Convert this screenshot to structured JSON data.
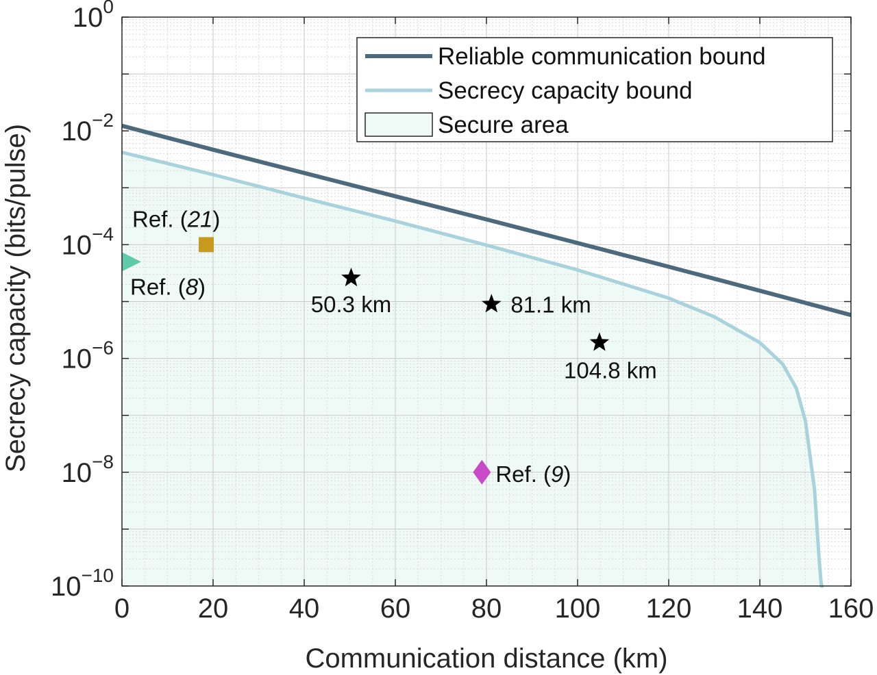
{
  "chart_data": {
    "type": "line",
    "xlabel": "Communication distance (km)",
    "ylabel": "Secrecy capacity (bits/pulse)",
    "xlim": [
      0,
      160
    ],
    "ylim": [
      1e-10,
      1
    ],
    "yscale": "log",
    "grid": true,
    "minor_grid": true,
    "legend_position": "top-right",
    "x_ticks": [
      0,
      20,
      40,
      60,
      80,
      100,
      120,
      140,
      160
    ],
    "y_ticks": [
      {
        "value": 1e-10,
        "base": "10",
        "exp": "−10"
      },
      {
        "value": 1e-08,
        "base": "10",
        "exp": "−8"
      },
      {
        "value": 1e-06,
        "base": "10",
        "exp": "−6"
      },
      {
        "value": 0.0001,
        "base": "10",
        "exp": "−4"
      },
      {
        "value": 0.01,
        "base": "10",
        "exp": "−2"
      },
      {
        "value": 1,
        "base": "10",
        "exp": "0"
      }
    ],
    "series": [
      {
        "name": "Reliable communication bound",
        "color": "#4d6a7d",
        "x": [
          0,
          20,
          40,
          60,
          80,
          100,
          120,
          140,
          160
        ],
        "y": [
          0.0123,
          0.00467,
          0.00182,
          0.00071,
          0.000278,
          0.000107,
          4.1e-05,
          1.55e-05,
          5.8e-06
        ]
      },
      {
        "name": "Secrecy capacity bound",
        "color": "#a8d3dd",
        "x": [
          0,
          20,
          40,
          60,
          80,
          100,
          120,
          130,
          140,
          145,
          148,
          150,
          152,
          153,
          153.5,
          154
        ],
        "y": [
          0.0042,
          0.0017,
          0.00066,
          0.00026,
          9.8e-05,
          3.6e-05,
          1.15e-05,
          5.4e-06,
          1.9e-06,
          8e-07,
          3e-07,
          8e-08,
          5e-09,
          3e-10,
          1e-10,
          1e-10
        ]
      }
    ],
    "area": {
      "name": "Secure area",
      "color": "#effaf6",
      "under_series": "Secrecy capacity bound"
    },
    "points": [
      {
        "marker": "triangle",
        "color": "#5fcaa8",
        "x": 1.5,
        "y": 5e-05,
        "label": "Ref. ",
        "label_italic": "8",
        "label_end": ")",
        "label_open": "("
      },
      {
        "marker": "square",
        "color": "#c79a1e",
        "x": 18.5,
        "y": 0.0001,
        "label": "Ref. ",
        "label_italic": "21",
        "label_end": ")",
        "label_open": "("
      },
      {
        "marker": "star",
        "color": "#000000",
        "x": 50.3,
        "y": 2.6e-05,
        "label": "50.3 km"
      },
      {
        "marker": "star",
        "color": "#000000",
        "x": 81.1,
        "y": 9e-06,
        "label": "81.1 km"
      },
      {
        "marker": "star",
        "color": "#000000",
        "x": 104.8,
        "y": 1.9e-06,
        "label": "104.8 km"
      },
      {
        "marker": "diamond",
        "color": "#c94ac6",
        "x": 79,
        "y": 1e-08,
        "label": "Ref. ",
        "label_italic": "9",
        "label_end": ")",
        "label_open": "("
      }
    ]
  }
}
